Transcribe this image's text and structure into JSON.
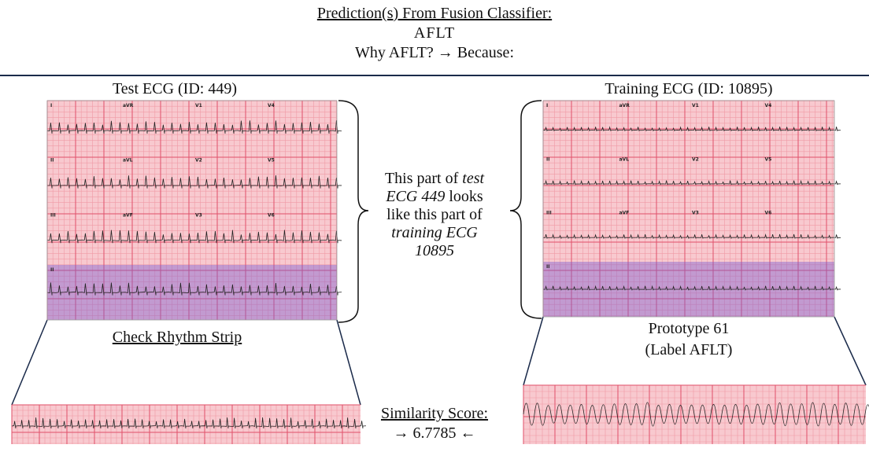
{
  "header": {
    "title": "Prediction(s) From Fusion Classifier:",
    "prediction": "AFLT",
    "question": "Why AFLT? → Because:"
  },
  "test_ecg": {
    "title": "Test ECG (ID: 449)",
    "leads": [
      "I",
      "aVR",
      "V1",
      "V4",
      "II",
      "aVL",
      "V2",
      "V5",
      "III",
      "aVF",
      "V3",
      "V6",
      "II"
    ],
    "caption": "Check Rhythm Strip"
  },
  "training_ecg": {
    "title": "Training ECG (ID: 10895)",
    "leads": [
      "I",
      "aVR",
      "V1",
      "V4",
      "II",
      "aVL",
      "V2",
      "V5",
      "III",
      "aVF",
      "V3",
      "V6",
      "II"
    ],
    "caption_lines": [
      "Prototype 61",
      "(Label AFLT)"
    ]
  },
  "explanation": [
    [
      "This part of ",
      "test"
    ],
    [
      "ECG 449",
      " looks"
    ],
    [
      "like this part of"
    ],
    [
      "training ECG"
    ],
    [
      "10895"
    ]
  ],
  "similarity": {
    "label": "Similarity Score:",
    "arrow_left": "→",
    "score": 6.7785,
    "arrow_right": "←"
  }
}
